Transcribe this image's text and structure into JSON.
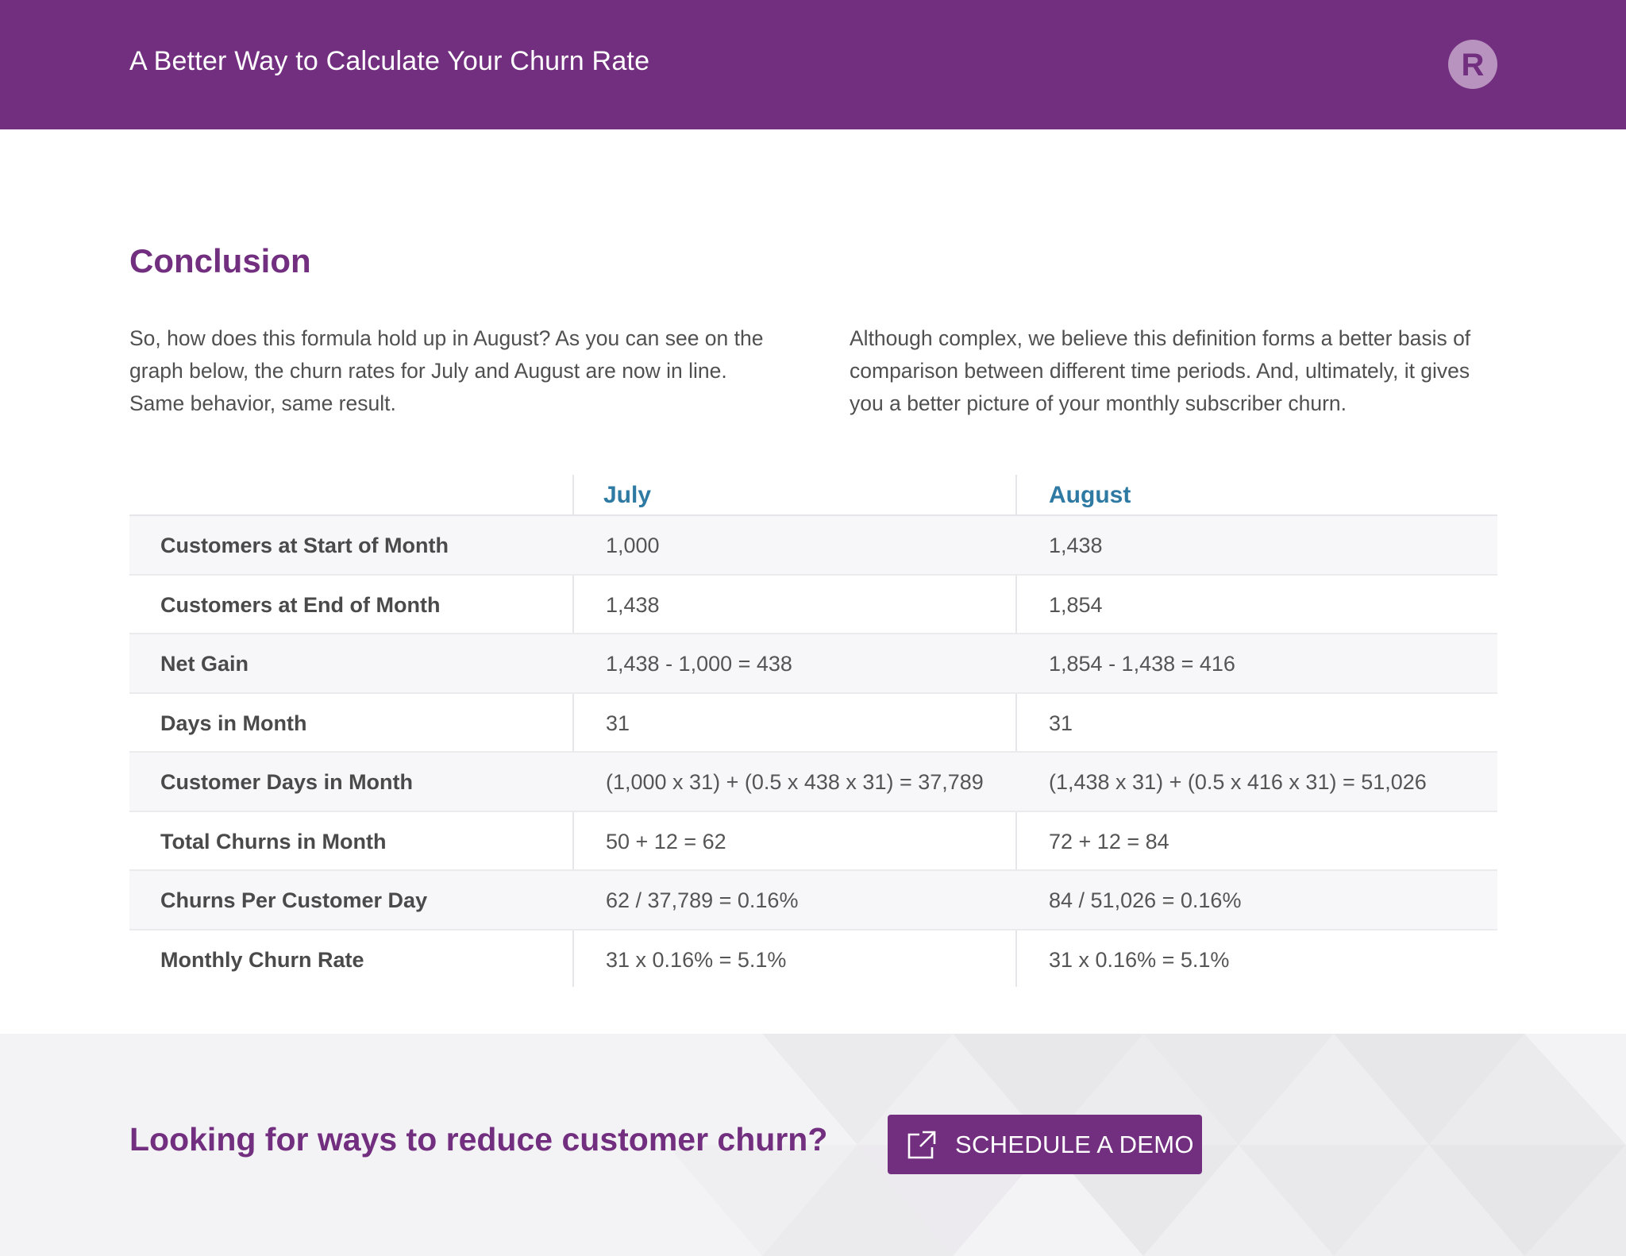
{
  "header": {
    "title": "A Better Way to Calculate Your Churn Rate",
    "logo_icon": "recurly-r-logo-icon",
    "logo_letter": "R"
  },
  "conclusion": {
    "title": "Conclusion",
    "paragraph_left": "So, how does this formula hold up in August? As you can see on the graph below, the churn rates for July and August are now in line. Same behavior, same result.",
    "paragraph_right": "Although complex, we believe this definition forms a better basis of comparison between different time periods. And, ultimately, it gives you a better picture of your monthly subscriber churn."
  },
  "table": {
    "columns": [
      "July",
      "August"
    ],
    "rows": [
      {
        "label": "Customers at Start of Month",
        "july": "1,000",
        "august": "1,438"
      },
      {
        "label": "Customers at End of Month",
        "july": "1,438",
        "august": "1,854"
      },
      {
        "label": "Net Gain",
        "july": "1,438 - 1,000 = 438",
        "august": "1,854 - 1,438 = 416"
      },
      {
        "label": "Days in Month",
        "july": "31",
        "august": "31"
      },
      {
        "label": "Customer Days in Month",
        "july": "(1,000 x 31) + (0.5 x 438 x 31) = 37,789",
        "august": "(1,438 x 31) + (0.5 x 416 x 31) = 51,026"
      },
      {
        "label": "Total Churns in Month",
        "july": "50 + 12 = 62",
        "august": "72 + 12 = 84"
      },
      {
        "label": "Churns Per Customer Day",
        "july": "62 / 37,789 = 0.16%",
        "august": "84 / 51,026 = 0.16%"
      },
      {
        "label": "Monthly Churn Rate",
        "july": "31 x 0.16% = 5.1%",
        "august": "31 x 0.16% = 5.1%"
      }
    ]
  },
  "footer": {
    "cta_text": "Looking for ways to reduce customer churn?",
    "button_label": "SCHEDULE A DEMO",
    "button_icon": "external-link-icon"
  },
  "colors": {
    "brand_purple": "#722f7f",
    "header_blue": "#2e7aa3",
    "logo_circle": "#b993c0"
  }
}
